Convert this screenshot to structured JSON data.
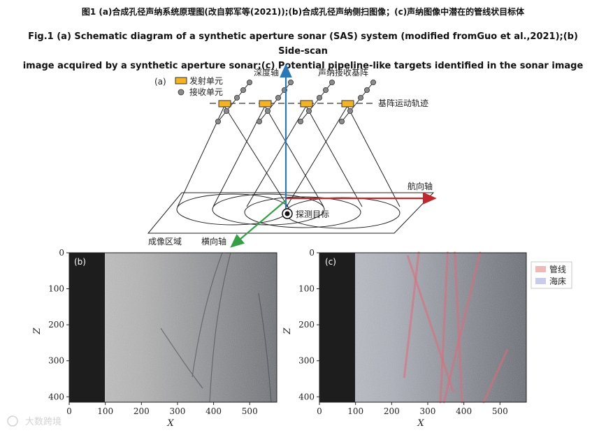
{
  "caption_cn": "图1 (a)合成孔径声纳系统原理图(改自郭军等(2021));(b)合成孔径声纳侧扫图像；(c)声纳图像中潜在的管线状目标体",
  "caption_en_line1": "Fig.1 (a) Schematic diagram of a synthetic aperture sonar (SAS) system (modified fromGuo et al.,2021);(b) Side-scan",
  "caption_en_line2": "image acquired by a synthetic aperture sonar;(c) Potential pipeline-like targets identified in the sonar image",
  "panel_a": {
    "tag": "(a)",
    "legend_emit": "发射单元",
    "legend_recv": "接收单元",
    "depth_axis": "深度轴",
    "array_label": "声纳接收基阵",
    "track_label": "基阵运动轨迹",
    "heading_axis": "航向轴",
    "target_label": "探测目标",
    "imaging_area": "成像区域",
    "cross_axis": "横向轴",
    "colors": {
      "emit": "#f5b324",
      "recv": "#8a8a8a",
      "depth": "#2a78b8",
      "heading": "#c0282e",
      "cross": "#34a046"
    }
  },
  "panel_b": {
    "tag": "(b)",
    "xlabel": "X",
    "ylabel": "Z",
    "xticks": [
      "0",
      "100",
      "200",
      "300",
      "400",
      "500"
    ],
    "yticks": [
      "0",
      "100",
      "200",
      "300",
      "400"
    ]
  },
  "panel_c": {
    "tag": "(c)",
    "xlabel": "X",
    "ylabel": "Z",
    "xticks": [
      "0",
      "100",
      "200",
      "300",
      "400",
      "500"
    ],
    "yticks": [
      "0",
      "100",
      "200",
      "300",
      "400"
    ],
    "legend": [
      {
        "label": "管线",
        "color": "#f2b8b8"
      },
      {
        "label": "海床",
        "color": "#c8ccea"
      }
    ],
    "pipelines": [
      {
        "x1": 275,
        "z1": 0,
        "x2": 235,
        "z2": 345
      },
      {
        "x1": 245,
        "z1": 10,
        "x2": 370,
        "z2": 385
      },
      {
        "x1": 355,
        "z1": 0,
        "x2": 335,
        "z2": 415
      },
      {
        "x1": 375,
        "z1": 0,
        "x2": 395,
        "z2": 415
      },
      {
        "x1": 445,
        "z1": 0,
        "x2": 345,
        "z2": 415
      },
      {
        "x1": 520,
        "z1": 270,
        "x2": 455,
        "z2": 415
      }
    ]
  },
  "watermark": "大数跨境"
}
